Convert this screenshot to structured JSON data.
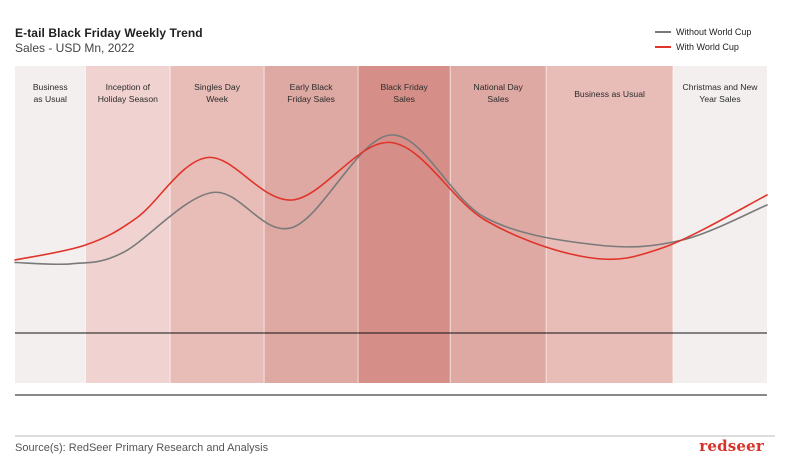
{
  "header": {
    "title": "E-tail Black Friday Weekly Trend",
    "subtitle": "Sales - USD Mn, 2022"
  },
  "legend": {
    "items": [
      {
        "label": "Without World Cup",
        "color": "#7a7a7a"
      },
      {
        "label": "With World Cup",
        "color": "#e0342b"
      }
    ]
  },
  "footer": {
    "source": "Source(s): RedSeer Primary Research and Analysis",
    "brand": "redseer"
  },
  "chart_data": {
    "type": "line",
    "title": "E-tail Black Friday Weekly Trend",
    "subtitle": "Sales - USD Mn, 2022",
    "xlabel": "",
    "ylabel": "",
    "x_range": [
      0,
      8
    ],
    "y_range": [
      0,
      100
    ],
    "grid": false,
    "legend_position": "top-right",
    "periods": [
      {
        "label_lines": [
          "Business",
          "as Usual"
        ],
        "start": 0,
        "end": 0.75,
        "color": "#f3efee"
      },
      {
        "label_lines": [
          "Inception of",
          "Holiday Season"
        ],
        "start": 0.75,
        "end": 1.65,
        "color": "#f0d3d0"
      },
      {
        "label_lines": [
          "Singles Day",
          "Week"
        ],
        "start": 1.65,
        "end": 2.65,
        "color": "#e8bdb8"
      },
      {
        "label_lines": [
          "Early Black",
          "Friday Sales"
        ],
        "start": 2.65,
        "end": 3.65,
        "color": "#dea8a3"
      },
      {
        "label_lines": [
          "Black Friday",
          "Sales"
        ],
        "start": 3.65,
        "end": 4.63,
        "color": "#d58f88"
      },
      {
        "label_lines": [
          "National Day",
          "Sales"
        ],
        "start": 4.63,
        "end": 5.65,
        "color": "#dea8a3"
      },
      {
        "label_lines": [
          "Business as Usual"
        ],
        "start": 5.65,
        "end": 7.0,
        "color": "#e8bdb8"
      },
      {
        "label_lines": [
          "Christmas and New",
          "Year Sales"
        ],
        "start": 7.0,
        "end": 8.0,
        "color": "#f3efee"
      }
    ],
    "series": [
      {
        "name": "Without World Cup",
        "color": "#7a7a7a",
        "points": [
          [
            0,
            27
          ],
          [
            0.6,
            26.5
          ],
          [
            1.15,
            31
          ],
          [
            2.1,
            55
          ],
          [
            2.95,
            41
          ],
          [
            4.0,
            78
          ],
          [
            5.0,
            45
          ],
          [
            6.2,
            34
          ],
          [
            7.1,
            36
          ],
          [
            8.0,
            50
          ]
        ]
      },
      {
        "name": "With World Cup",
        "color": "#e0342b",
        "points": [
          [
            0,
            28
          ],
          [
            0.75,
            34
          ],
          [
            1.3,
            45
          ],
          [
            2.05,
            69
          ],
          [
            2.95,
            52
          ],
          [
            4.0,
            75
          ],
          [
            5.0,
            44
          ],
          [
            6.1,
            29
          ],
          [
            6.9,
            33
          ],
          [
            8.0,
            54
          ]
        ]
      }
    ]
  }
}
